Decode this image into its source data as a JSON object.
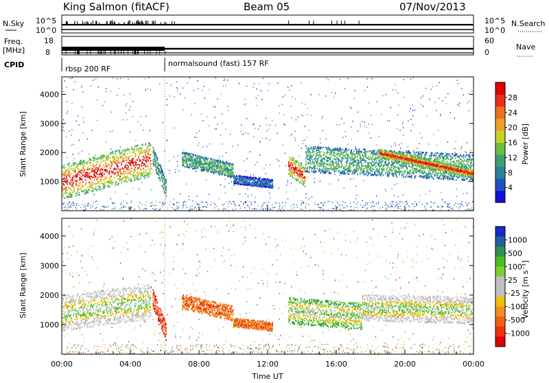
{
  "header": {
    "station": "King Salmon (fitACF)",
    "beam": "Beam 05",
    "date": "07/Nov/2013"
  },
  "summary_panels": {
    "nsky_label": "N.Sky",
    "nsky_ticks": [
      "10^5",
      "10^0"
    ],
    "nsearch_label": "N.Search",
    "nsearch_ticks": [
      "10^5",
      "10^0"
    ],
    "freq_label_top": "Freq.",
    "freq_label_unit": "[MHz]",
    "freq_ticks": [
      "18",
      "8"
    ],
    "nave_label": "Nave",
    "nave_ticks": [
      "60",
      "0"
    ],
    "cpid_label": "CPID",
    "cpid_segments": [
      {
        "name": "rbsp 200 RF",
        "start_hour": 0
      },
      {
        "name": "normalsound (fast) 157 RF",
        "start_hour": 6
      }
    ]
  },
  "chart_data": [
    {
      "type": "heatmap",
      "name": "power",
      "ylabel": "Slant Range [km]",
      "ylim": [
        0,
        4600
      ],
      "yticks": [
        1000,
        2000,
        3000,
        4000
      ],
      "xlim": [
        0,
        24
      ],
      "colorbar": {
        "label": "Power [dB]",
        "ticks": [
          "4",
          "8",
          "12",
          "16",
          "20",
          "24",
          "28"
        ],
        "range": [
          0,
          32
        ],
        "colors": [
          "#1010e0",
          "#2050c0",
          "#2f7f9a",
          "#3ba070",
          "#6cbf3c",
          "#c8d028",
          "#f0a020",
          "#f07020",
          "#e83018",
          "#e00000"
        ]
      },
      "echo_regions": [
        {
          "x_start": 0.0,
          "x_end": 5.2,
          "range_center_start": 1000,
          "range_center_end": 1800,
          "width_km": 1200,
          "peak": "red"
        },
        {
          "x_start": 5.3,
          "x_end": 6.1,
          "range_center_start": 1900,
          "range_center_end": 800,
          "width_km": 600,
          "peak": "green"
        },
        {
          "x_start": 7.0,
          "x_end": 10.0,
          "range_center_start": 1800,
          "range_center_end": 1400,
          "width_km": 500,
          "peak": "green"
        },
        {
          "x_start": 10.0,
          "x_end": 12.3,
          "range_center_start": 1100,
          "range_center_end": 950,
          "width_km": 300,
          "peak": "blue"
        },
        {
          "x_start": 13.2,
          "x_end": 14.2,
          "range_center_start": 1600,
          "range_center_end": 1200,
          "width_km": 700,
          "peak": "red"
        },
        {
          "x_start": 14.2,
          "x_end": 24.0,
          "range_center_start": 1800,
          "range_center_end": 1500,
          "width_km": 900,
          "peak": "green"
        },
        {
          "x_start": 18.5,
          "x_end": 24.0,
          "range_center_start": 2000,
          "range_center_end": 1300,
          "width_km": 300,
          "peak": "red"
        }
      ]
    },
    {
      "type": "heatmap",
      "name": "velocity",
      "ylabel": "Slant Range [km]",
      "ylim": [
        0,
        4600
      ],
      "yticks": [
        1000,
        2000,
        3000,
        4000
      ],
      "xlim": [
        0,
        24
      ],
      "xticks": [
        "00:00",
        "04:00",
        "08:00",
        "12:00",
        "16:00",
        "20:00",
        "00:00"
      ],
      "xlabel": "Time UT",
      "colorbar": {
        "label": "Velocity [m s⁻¹]",
        "ticks": [
          "1000",
          "500",
          "100",
          "25",
          "-25",
          "-100",
          "-500",
          "-1000"
        ],
        "colors": [
          "#1a28c8",
          "#2060a0",
          "#2f9050",
          "#48c020",
          "#7ad030",
          "#c0c0c0",
          "#c0c0c0",
          "#f0c000",
          "#f09020",
          "#f06010",
          "#f03010",
          "#e00000"
        ]
      },
      "echo_regions": [
        {
          "x_start": 0.0,
          "x_end": 5.2,
          "range_center_start": 1400,
          "range_center_end": 1800,
          "width_km": 1200,
          "peak": "gray"
        },
        {
          "x_start": 5.3,
          "x_end": 6.1,
          "range_center_start": 1900,
          "range_center_end": 800,
          "width_km": 600,
          "peak": "red"
        },
        {
          "x_start": 7.0,
          "x_end": 10.0,
          "range_center_start": 1800,
          "range_center_end": 1400,
          "width_km": 500,
          "peak": "orange"
        },
        {
          "x_start": 10.0,
          "x_end": 12.3,
          "range_center_start": 1100,
          "range_center_end": 950,
          "width_km": 300,
          "peak": "orange"
        },
        {
          "x_start": 13.2,
          "x_end": 17.5,
          "range_center_start": 1500,
          "range_center_end": 1300,
          "width_km": 900,
          "peak": "green"
        },
        {
          "x_start": 17.5,
          "x_end": 24.0,
          "range_center_start": 1600,
          "range_center_end": 1500,
          "width_km": 900,
          "peak": "gray"
        }
      ]
    }
  ]
}
